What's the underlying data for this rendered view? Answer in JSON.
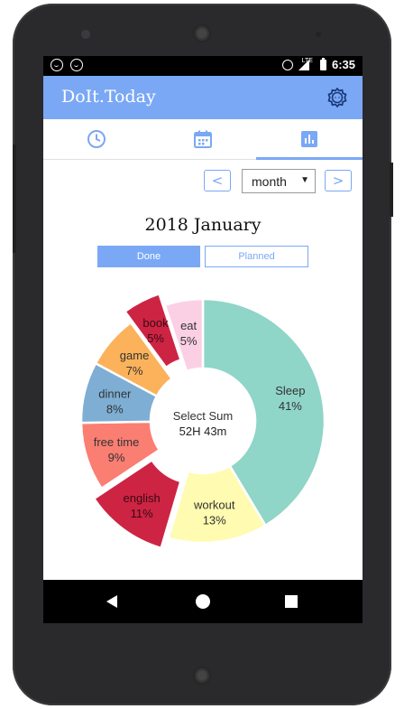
{
  "status_bar": {
    "time": "6:35",
    "network": "LTE"
  },
  "app_bar": {
    "title": "DoIt.Today"
  },
  "tabs": [
    {
      "name": "clock-icon",
      "active": false
    },
    {
      "name": "calendar-icon",
      "active": false
    },
    {
      "name": "chart-icon",
      "active": true
    }
  ],
  "controls": {
    "prev_label": "<",
    "next_label": ">",
    "period_selected": "month"
  },
  "title": "2018 January",
  "toggle": {
    "done_label": "Done",
    "planned_label": "Planned",
    "selected": "Done"
  },
  "center": {
    "label": "Select Sum",
    "value": "52H 43m"
  },
  "colors": {
    "accent": "#7aa8f5"
  },
  "chart_data": {
    "type": "pie",
    "donut": true,
    "slices": [
      {
        "label": "Sleep",
        "percent": 41,
        "text": "41%",
        "color": "#8fd5c8",
        "exploded": false
      },
      {
        "label": "workout",
        "percent": 13,
        "text": "13%",
        "color": "#fffbb0",
        "exploded": false
      },
      {
        "label": "english",
        "percent": 11,
        "text": "11%",
        "color": "#cd2444",
        "exploded": true
      },
      {
        "label": "free time",
        "percent": 9,
        "text": "9%",
        "color": "#fb7e72",
        "exploded": false
      },
      {
        "label": "dinner",
        "percent": 8,
        "text": "8%",
        "color": "#7eaed4",
        "exploded": false
      },
      {
        "label": "game",
        "percent": 7,
        "text": "7%",
        "color": "#fbb25b",
        "exploded": false
      },
      {
        "label": "book",
        "percent": 5,
        "text": "5%",
        "color": "#cd2444",
        "exploded": true
      },
      {
        "label": "eat",
        "percent": 5,
        "text": "5%",
        "color": "#fcd0e4",
        "exploded": false
      }
    ]
  }
}
